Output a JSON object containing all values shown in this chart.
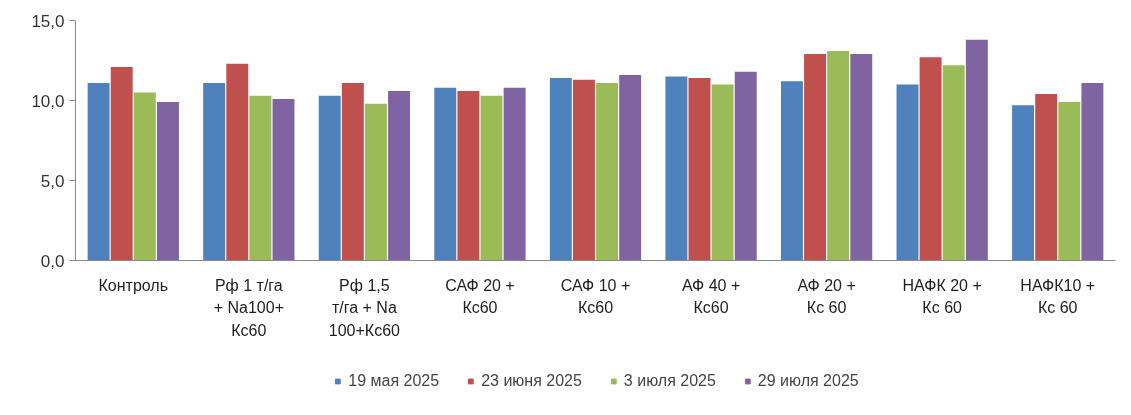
{
  "chart_data": {
    "type": "bar",
    "categories": [
      "Контроль",
      "Рф 1 т/га + Na100+ Кс60",
      "Рф 1,5 т/га + Na 100+Кс60",
      "САФ 20 + Кс60",
      "САФ 10 + Кс60",
      "АФ 40 + Кс60",
      "АФ 20 + Кс 60",
      "НАФК 20 + Кс 60",
      "НАФК10 + Кс 60"
    ],
    "series": [
      {
        "name": "19 мая 2025",
        "color": "#4f81bd",
        "values": [
          11.1,
          11.1,
          10.3,
          10.8,
          11.4,
          11.5,
          11.2,
          11.0,
          9.7
        ]
      },
      {
        "name": "23 июня 2025",
        "color": "#c0504d",
        "values": [
          12.1,
          12.3,
          11.1,
          10.6,
          11.3,
          11.4,
          12.9,
          12.7,
          10.4
        ]
      },
      {
        "name": "3 июля 2025",
        "color": "#9bbb59",
        "values": [
          10.5,
          10.3,
          9.8,
          10.3,
          11.1,
          11.0,
          13.1,
          12.2,
          9.9
        ]
      },
      {
        "name": "29 июля 2025",
        "color": "#8064a2",
        "values": [
          9.9,
          10.1,
          10.6,
          10.8,
          11.6,
          11.8,
          12.9,
          13.8,
          11.1
        ]
      }
    ],
    "ylim": [
      0,
      15
    ],
    "yticks": [
      {
        "value": 0,
        "label": "0,0"
      },
      {
        "value": 5,
        "label": "5,0"
      },
      {
        "value": 10,
        "label": "10,0"
      },
      {
        "value": 15,
        "label": "15,0"
      }
    ],
    "grid": false,
    "legend": "bottom"
  }
}
